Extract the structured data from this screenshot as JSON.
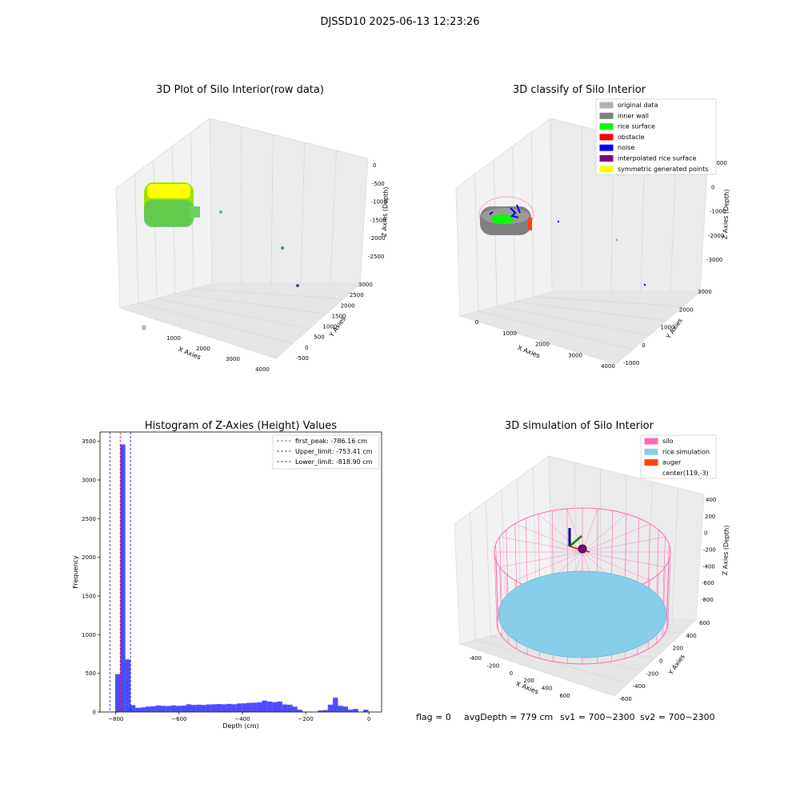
{
  "suptitle": "DJSSD10 2025-06-13 12:23:26",
  "footer": {
    "flag": "flag = 0",
    "avg_depth": "avgDepth = 779 cm",
    "sv1": "sv1 = 700~2300",
    "sv2": "sv2 = 700~2300"
  },
  "colors": {
    "pane_face": "#f2f2f2",
    "pane_side": "#e8e8e8",
    "grid": "#d8d8d8",
    "hist_bar": "#0000ff",
    "peak_line": "#ff0000",
    "limit_line": "#0000cc",
    "silo": "#ff69b4",
    "rice_sim": "#87ceeb",
    "auger": "#ff4500"
  },
  "plot1": {
    "title": "3D Plot of Silo Interior(row data)",
    "xlabel": "X Axies",
    "ylabel": "Y Axies",
    "zlabel": "Z Axies (Depth)",
    "xticks": [
      "0",
      "1000",
      "2000",
      "3000",
      "4000"
    ],
    "yticks": [
      "-500",
      "0",
      "500",
      "1000",
      "1500",
      "2000",
      "2500",
      "3000"
    ],
    "zticks": [
      "0",
      "-500",
      "-1000",
      "-1500",
      "-2000",
      "-2500"
    ],
    "colormap": [
      "#ffff00",
      "#9be200",
      "#4cc26c",
      "#2f8e8c",
      "#3b528b"
    ]
  },
  "plot2": {
    "title": "3D classify of Silo Interior",
    "xlabel": "X Axies",
    "ylabel": "Y Axies",
    "zlabel": "Z Axies (Depth)",
    "xticks": [
      "0",
      "1000",
      "2000",
      "3000",
      "4000"
    ],
    "yticks": [
      "-1000",
      "0",
      "1000",
      "2000",
      "3000"
    ],
    "zticks": [
      "1000",
      "0",
      "-1000",
      "-2000",
      "-3000"
    ],
    "legend": [
      {
        "label": "original data",
        "color": "#b0b0b0"
      },
      {
        "label": "inner wall",
        "color": "#808080"
      },
      {
        "label": "rice surface",
        "color": "#00ff00"
      },
      {
        "label": "obstacle",
        "color": "#ff0000"
      },
      {
        "label": "noise",
        "color": "#0000ff"
      },
      {
        "label": "interpolated rice surface",
        "color": "#800080"
      },
      {
        "label": "symmetric generated points",
        "color": "#ffff00"
      }
    ]
  },
  "plot4": {
    "title": "3D simulation of Silo Interior",
    "xlabel": "X Axies",
    "ylabel": "Y Axies",
    "zlabel": "Z Axies (Depth)",
    "xticks": [
      "-400",
      "-200",
      "0",
      "200",
      "400",
      "600"
    ],
    "yticks": [
      "-600",
      "-400",
      "-200",
      "0",
      "200",
      "400",
      "600"
    ],
    "zticks": [
      "400",
      "200",
      "0",
      "-200",
      "-400",
      "-600",
      "-800"
    ],
    "legend": [
      {
        "label": "silo",
        "color": "#ff69b4"
      },
      {
        "label": "rice simulation",
        "color": "#87ceeb"
      },
      {
        "label": "auger",
        "color": "#ff4500"
      },
      {
        "label": "center(119,-3)",
        "color": "#ffffff"
      }
    ]
  },
  "chart_data": {
    "type": "bar",
    "title": "Histogram of Z-Axies (Height) Values",
    "xlabel": "Depth (cm)",
    "ylabel": "Frequency",
    "xlim": [
      -850,
      40
    ],
    "ylim": [
      0,
      3620
    ],
    "xticks": [
      -800,
      -600,
      -400,
      -200,
      0
    ],
    "yticks": [
      0,
      500,
      1000,
      1500,
      2000,
      2500,
      3000,
      3500
    ],
    "bin_width": 16,
    "bins": [
      {
        "x0": -818,
        "count": 0
      },
      {
        "x0": -802,
        "count": 490
      },
      {
        "x0": -786,
        "count": 3460
      },
      {
        "x0": -770,
        "count": 680
      },
      {
        "x0": -754,
        "count": 90
      },
      {
        "x0": -738,
        "count": 55
      },
      {
        "x0": -722,
        "count": 60
      },
      {
        "x0": -706,
        "count": 70
      },
      {
        "x0": -690,
        "count": 75
      },
      {
        "x0": -674,
        "count": 85
      },
      {
        "x0": -658,
        "count": 80
      },
      {
        "x0": -642,
        "count": 78
      },
      {
        "x0": -626,
        "count": 85
      },
      {
        "x0": -610,
        "count": 80
      },
      {
        "x0": -594,
        "count": 82
      },
      {
        "x0": -578,
        "count": 100
      },
      {
        "x0": -562,
        "count": 92
      },
      {
        "x0": -546,
        "count": 95
      },
      {
        "x0": -530,
        "count": 92
      },
      {
        "x0": -514,
        "count": 98
      },
      {
        "x0": -498,
        "count": 100
      },
      {
        "x0": -482,
        "count": 102
      },
      {
        "x0": -466,
        "count": 100
      },
      {
        "x0": -450,
        "count": 105
      },
      {
        "x0": -434,
        "count": 100
      },
      {
        "x0": -418,
        "count": 110
      },
      {
        "x0": -402,
        "count": 112
      },
      {
        "x0": -386,
        "count": 118
      },
      {
        "x0": -370,
        "count": 120
      },
      {
        "x0": -354,
        "count": 125
      },
      {
        "x0": -338,
        "count": 148
      },
      {
        "x0": -322,
        "count": 135
      },
      {
        "x0": -306,
        "count": 128
      },
      {
        "x0": -290,
        "count": 135
      },
      {
        "x0": -274,
        "count": 98
      },
      {
        "x0": -258,
        "count": 95
      },
      {
        "x0": -242,
        "count": 70
      },
      {
        "x0": -226,
        "count": 30
      },
      {
        "x0": -210,
        "count": 5
      },
      {
        "x0": -194,
        "count": 5
      },
      {
        "x0": -178,
        "count": 5
      },
      {
        "x0": -162,
        "count": 20
      },
      {
        "x0": -146,
        "count": 25
      },
      {
        "x0": -130,
        "count": 95
      },
      {
        "x0": -114,
        "count": 185
      },
      {
        "x0": -98,
        "count": 80
      },
      {
        "x0": -82,
        "count": 70
      },
      {
        "x0": -66,
        "count": 30
      },
      {
        "x0": -50,
        "count": 40
      },
      {
        "x0": -34,
        "count": 0
      },
      {
        "x0": -18,
        "count": 30
      }
    ],
    "lines": [
      {
        "label": "first_peak: -786.16 cm",
        "x": -786.16,
        "color": "#ff0000"
      },
      {
        "label": "Upper_limit: -753.41 cm",
        "x": -753.41,
        "color": "#0000cc"
      },
      {
        "label": "Lower_limit: -818.90 cm",
        "x": -818.9,
        "color": "#0000cc"
      }
    ],
    "legend_position": "upper right"
  }
}
